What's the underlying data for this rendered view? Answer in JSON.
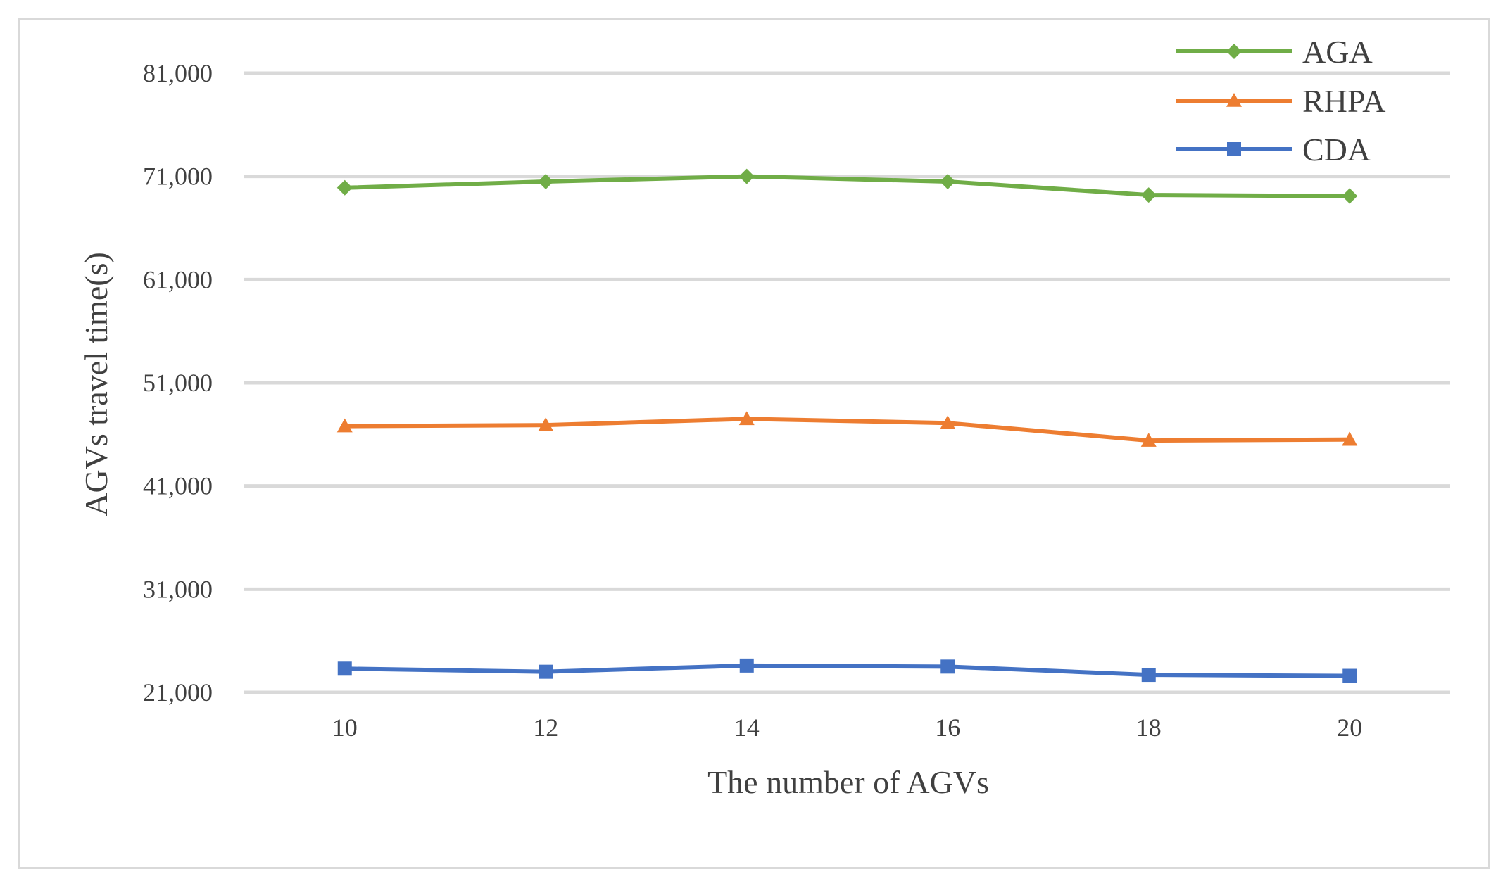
{
  "chart_data": {
    "type": "line",
    "title": "",
    "xlabel": "The number of AGVs",
    "ylabel": "AGVs travel time(s)",
    "categories": [
      "10",
      "12",
      "14",
      "16",
      "18",
      "20"
    ],
    "y_ticks": [
      "21,000",
      "31,000",
      "41,000",
      "51,000",
      "61,000",
      "71,000",
      "81,000"
    ],
    "ylim": [
      21000,
      81000
    ],
    "grid": true,
    "legend_position": "top-right",
    "series": [
      {
        "name": "AGA",
        "color": "#70ad47",
        "marker": "diamond",
        "values": [
          69900,
          70500,
          71000,
          70500,
          69200,
          69100
        ]
      },
      {
        "name": "RHPA",
        "color": "#ed7d31",
        "marker": "triangle",
        "values": [
          46800,
          46900,
          47500,
          47100,
          45400,
          45500
        ]
      },
      {
        "name": "CDA",
        "color": "#4472c4",
        "marker": "square",
        "values": [
          23300,
          23000,
          23600,
          23500,
          22700,
          22600
        ]
      }
    ]
  }
}
